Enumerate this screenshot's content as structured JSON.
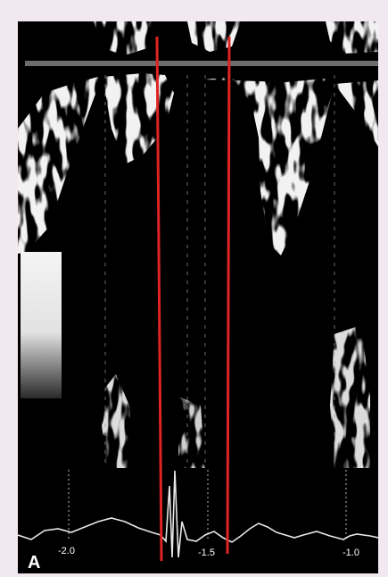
{
  "figure": {
    "panel_label": "A",
    "ecg_tick_labels": [
      "-2.0",
      "-1.5",
      "-1.0"
    ],
    "colors": {
      "background": "#f1e9ef",
      "image_background": "#000000",
      "marker_lines": "#e02424",
      "doppler_signal": "#f2f2f2",
      "ecg_trace": "#e8e8e8"
    }
  }
}
